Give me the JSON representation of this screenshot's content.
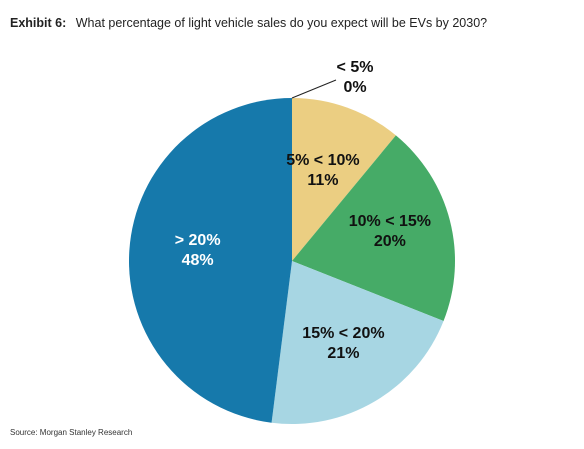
{
  "header": {
    "exhibit": "Exhibit 6:",
    "question": "What percentage of light vehicle sales do you expect will be EVs by 2030?"
  },
  "chart_data": {
    "type": "pie",
    "title": "",
    "slices": [
      {
        "label": "< 5%",
        "value": 0,
        "value_label": "0%",
        "color": "#1a75a8",
        "text_color": "#111111"
      },
      {
        "label": "5% < 10%",
        "value": 11,
        "value_label": "11%",
        "color": "#ebce82",
        "text_color": "#111111"
      },
      {
        "label": "10% < 15%",
        "value": 20,
        "value_label": "20%",
        "color": "#46ab67",
        "text_color": "#111111"
      },
      {
        "label": "15% < 20%",
        "value": 21,
        "value_label": "21%",
        "color": "#a7d6e3",
        "text_color": "#111111"
      },
      {
        "label": "> 20%",
        "value": 48,
        "value_label": "48%",
        "color": "#1679ab",
        "text_color": "#ffffff"
      }
    ],
    "start_angle": "12 o'clock",
    "direction": "clockwise",
    "legend": "none"
  },
  "footer": {
    "source": "Source: Morgan Stanley Research"
  }
}
